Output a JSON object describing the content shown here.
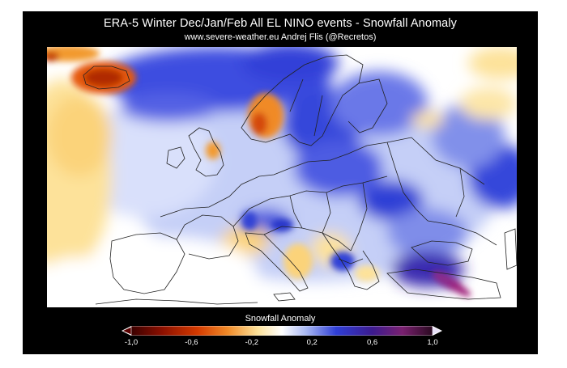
{
  "header": {
    "title": "ERA-5  Winter Dec/Jan/Feb  All EL NINO events  -  Snowfall Anomaly",
    "subtitle": "www.severe-weather.eu   Andrej Flis (@Recretos)"
  },
  "legend": {
    "title": "Snowfall Anomaly",
    "ticks": [
      "-1,0",
      "-0,6",
      "-0,2",
      "0,2",
      "0,6",
      "1,0"
    ],
    "tick_values": [
      -1.0,
      -0.6,
      -0.2,
      0.2,
      0.6,
      1.0
    ],
    "range": [
      -1.0,
      1.0
    ],
    "colors": {
      "strong_negative": "#5a0000",
      "negative": "#d43a00",
      "mild_negative": "#f5a623",
      "weak_negative": "#fde29a",
      "neutral": "#ffffff",
      "weak_positive": "#a9b8f2",
      "positive": "#2f3fd6",
      "strong_positive": "#3c1b8f",
      "extreme_positive": "#a0207a"
    }
  },
  "map": {
    "region": "Europe",
    "colors": {
      "background": "#ffffff",
      "borders": "#222222"
    }
  }
}
